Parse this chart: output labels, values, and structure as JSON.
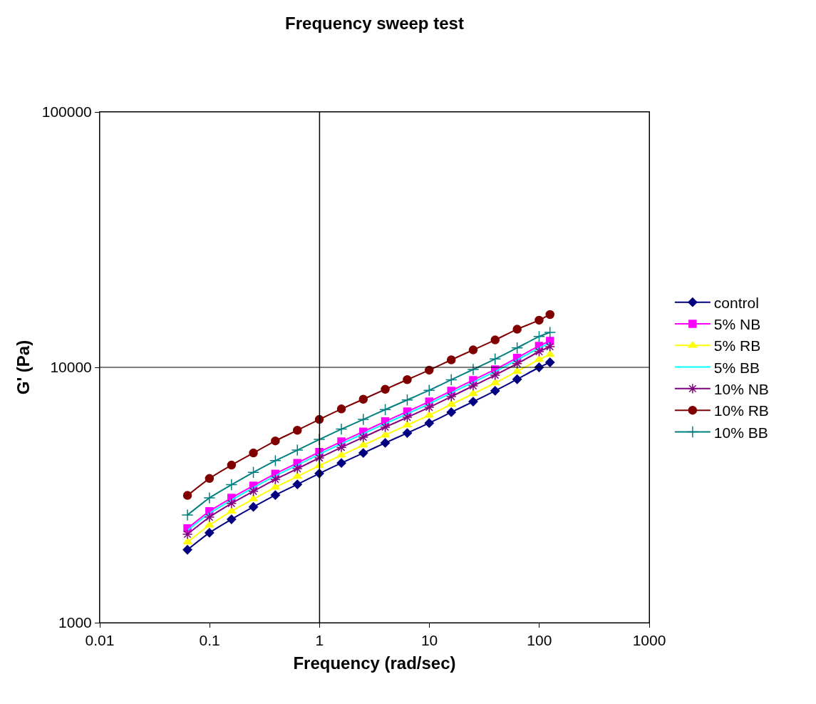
{
  "chart_data": {
    "type": "line",
    "title": "Frequency sweep test",
    "xlabel": "Frequency (rad/sec)",
    "ylabel": "G' (Pa)",
    "log": "xy",
    "grid": false,
    "legend": "right",
    "line_style": "solid",
    "xlim": [
      0.01,
      1000
    ],
    "xticks": [
      0.01,
      0.1,
      1,
      10,
      100,
      1000
    ],
    "ylim": [
      1000,
      100000
    ],
    "yticks": [
      1000,
      10000,
      100000
    ],
    "ref_lines": [
      {
        "axis": "x",
        "value": 1,
        "color": "#000000"
      },
      {
        "axis": "y",
        "value": 10000,
        "color": "#000000"
      }
    ],
    "x": [
      0.0628,
      0.0995,
      0.158,
      0.25,
      0.396,
      0.628,
      0.995,
      1.58,
      2.5,
      3.96,
      6.28,
      9.95,
      15.8,
      25,
      39.6,
      62.8,
      99.5,
      125
    ],
    "series": [
      {
        "name": "control",
        "color": "#000080",
        "marker": "diamond",
        "values": [
          1930,
          2250,
          2540,
          2840,
          3160,
          3480,
          3840,
          4220,
          4620,
          5060,
          5530,
          6050,
          6670,
          7340,
          8090,
          8980,
          10000,
          10460
        ]
      },
      {
        "name": "5% NB",
        "color": "#ff00ff",
        "marker": "square",
        "values": [
          2340,
          2730,
          3080,
          3440,
          3830,
          4220,
          4660,
          5120,
          5600,
          6140,
          6710,
          7340,
          8090,
          8910,
          9810,
          10890,
          12130,
          12690
        ]
      },
      {
        "name": "5% RB",
        "color": "#ffff00",
        "marker": "triangle",
        "values": [
          2070,
          2410,
          2730,
          3050,
          3390,
          3740,
          4120,
          4530,
          4960,
          5430,
          5940,
          6490,
          7160,
          7880,
          8680,
          9640,
          10730,
          11220
        ]
      },
      {
        "name": "5% BB",
        "color": "#00ffff",
        "marker": "none",
        "values": [
          2300,
          2680,
          3020,
          3380,
          3760,
          4140,
          4570,
          5020,
          5500,
          6020,
          6580,
          7200,
          7940,
          8740,
          9630,
          10690,
          11900,
          12450
        ]
      },
      {
        "name": "10% NB",
        "color": "#800080",
        "marker": "cross",
        "values": [
          2220,
          2590,
          2930,
          3270,
          3640,
          4010,
          4420,
          4860,
          5320,
          5830,
          6370,
          6970,
          7680,
          8460,
          9320,
          10340,
          11520,
          12050
        ]
      },
      {
        "name": "10% RB",
        "color": "#800000",
        "marker": "circle",
        "values": [
          3150,
          3670,
          4140,
          4620,
          5150,
          5670,
          6250,
          6870,
          7500,
          8200,
          8950,
          9750,
          10700,
          11700,
          12800,
          14100,
          15300,
          16100
        ]
      },
      {
        "name": "10% BB",
        "color": "#008080",
        "marker": "cross",
        "values": [
          2640,
          3080,
          3470,
          3880,
          4310,
          4740,
          5220,
          5730,
          6250,
          6830,
          7450,
          8130,
          8940,
          9810,
          10780,
          11920,
          13200,
          13700
        ]
      }
    ]
  }
}
